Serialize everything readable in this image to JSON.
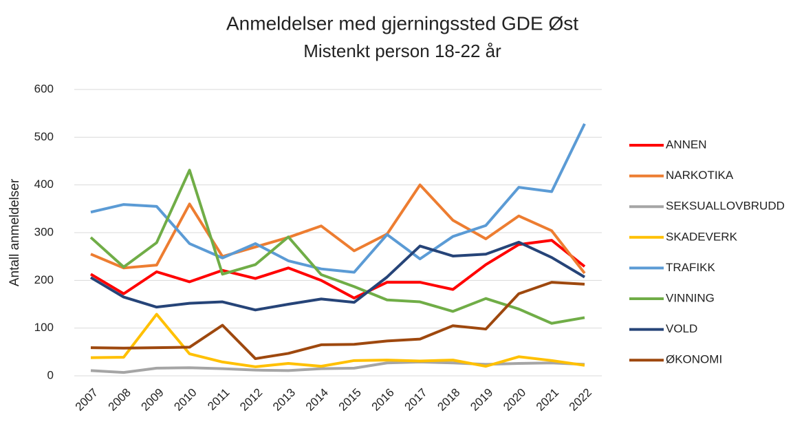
{
  "chart_data": {
    "type": "line",
    "title": "Anmeldelser med gjerningssted GDE Øst",
    "subtitle": "Mistenkt person 18-22 år",
    "y_label": "Antall anmeldelser",
    "categories": [
      "2007",
      "2008",
      "2009",
      "2010",
      "2011",
      "2012",
      "2013",
      "2014",
      "2015",
      "2016",
      "2017",
      "2018",
      "2019",
      "2020",
      "2021",
      "2022"
    ],
    "ylim": [
      0,
      600
    ],
    "yticks": [
      0,
      100,
      200,
      300,
      400,
      500,
      600
    ],
    "grid": true,
    "legend": "right",
    "series": [
      {
        "name": "ANNEN",
        "color": "#ff0000",
        "values": [
          213,
          172,
          218,
          197,
          221,
          204,
          226,
          200,
          163,
          196,
          196,
          181,
          233,
          275,
          284,
          229
        ]
      },
      {
        "name": "NARKOTIKA",
        "color": "#ed7d31",
        "values": [
          255,
          226,
          232,
          360,
          250,
          270,
          290,
          314,
          262,
          297,
          400,
          326,
          287,
          335,
          304,
          215
        ]
      },
      {
        "name": "SEKSUALLOVBRUDD",
        "color": "#a5a5a5",
        "values": [
          11,
          7,
          16,
          17,
          15,
          12,
          11,
          15,
          16,
          27,
          29,
          27,
          24,
          26,
          27,
          24
        ]
      },
      {
        "name": "SKADEVERK",
        "color": "#ffc000",
        "values": [
          38,
          39,
          129,
          46,
          29,
          19,
          26,
          20,
          32,
          33,
          31,
          33,
          20,
          40,
          32,
          22
        ]
      },
      {
        "name": "TRAFIKK",
        "color": "#5b9bd5",
        "values": [
          343,
          359,
          355,
          277,
          247,
          277,
          241,
          224,
          217,
          296,
          245,
          292,
          315,
          395,
          386,
          528
        ]
      },
      {
        "name": "VINNING",
        "color": "#70ad47",
        "values": [
          290,
          228,
          279,
          431,
          213,
          233,
          291,
          212,
          187,
          159,
          155,
          135,
          162,
          140,
          110,
          122
        ]
      },
      {
        "name": "VOLD",
        "color": "#264478",
        "values": [
          206,
          165,
          144,
          152,
          155,
          138,
          150,
          161,
          154,
          207,
          272,
          251,
          255,
          280,
          248,
          207
        ]
      },
      {
        "name": "ØKONOMI",
        "color": "#9e480e",
        "values": [
          59,
          58,
          59,
          60,
          106,
          36,
          47,
          65,
          66,
          73,
          77,
          105,
          98,
          172,
          196,
          192
        ]
      }
    ]
  }
}
